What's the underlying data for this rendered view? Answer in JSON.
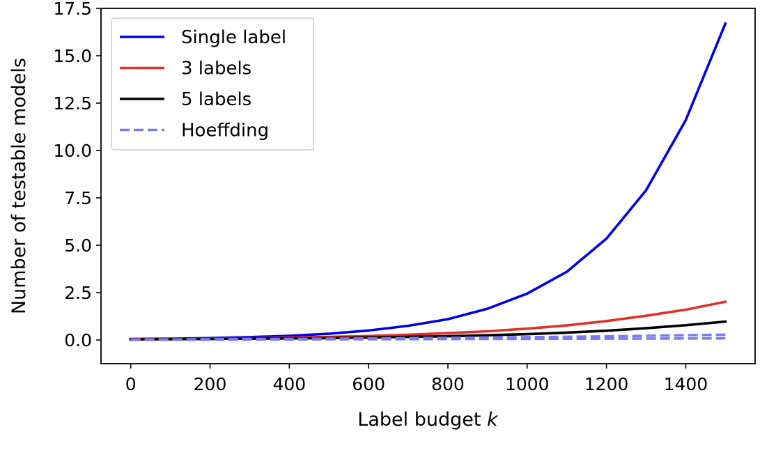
{
  "chart_data": {
    "type": "line",
    "title": "",
    "xlabel": "Label budget",
    "xlabel_var": "k",
    "ylabel": "Number of testable models",
    "xlim": [
      -75,
      1575
    ],
    "ylim": [
      -1.25,
      17.5
    ],
    "xticks": [
      0,
      200,
      400,
      600,
      800,
      1000,
      1200,
      1400
    ],
    "xtick_labels": [
      "0",
      "200",
      "400",
      "600",
      "800",
      "1000",
      "1200",
      "1400"
    ],
    "yticks": [
      0.0,
      2.5,
      5.0,
      7.5,
      10.0,
      12.5,
      15.0,
      17.5
    ],
    "ytick_labels": [
      "0.0",
      "2.5",
      "5.0",
      "7.5",
      "10.0",
      "12.5",
      "15.0",
      "17.5"
    ],
    "grid": false,
    "legend_position": "top-left",
    "legend": [
      "Single label",
      "3 labels",
      "5 labels",
      "Hoeffding"
    ],
    "x": [
      0,
      100,
      200,
      300,
      400,
      500,
      600,
      700,
      800,
      900,
      1000,
      1100,
      1200,
      1300,
      1400,
      1500
    ],
    "series": [
      {
        "name": "Single label",
        "color": "#0000e6",
        "style": "solid",
        "values": [
          0.05,
          0.07,
          0.1,
          0.15,
          0.22,
          0.33,
          0.5,
          0.75,
          1.1,
          1.65,
          2.45,
          3.6,
          5.35,
          7.9,
          11.6,
          16.7
        ]
      },
      {
        "name": "3 labels",
        "color": "#e0302a",
        "style": "solid",
        "values": [
          0.04,
          0.05,
          0.07,
          0.09,
          0.12,
          0.16,
          0.21,
          0.28,
          0.36,
          0.46,
          0.6,
          0.77,
          1.0,
          1.28,
          1.6,
          2.02
        ]
      },
      {
        "name": "5 labels",
        "color": "#000000",
        "style": "solid",
        "values": [
          0.03,
          0.04,
          0.05,
          0.07,
          0.08,
          0.1,
          0.13,
          0.16,
          0.2,
          0.25,
          0.31,
          0.39,
          0.49,
          0.62,
          0.78,
          0.97
        ]
      },
      {
        "name": "Hoeffding",
        "color": "#7b7bf0",
        "style": "dashed",
        "values": [
          0.02,
          0.03,
          0.04,
          0.05,
          0.06,
          0.07,
          0.08,
          0.1,
          0.11,
          0.13,
          0.15,
          0.17,
          0.19,
          0.22,
          0.25,
          0.28
        ]
      },
      {
        "name": "",
        "color": "#7b7bf0",
        "style": "dashed",
        "legend": false,
        "values": [
          0.01,
          0.015,
          0.02,
          0.025,
          0.03,
          0.035,
          0.04,
          0.045,
          0.05,
          0.055,
          0.06,
          0.065,
          0.07,
          0.075,
          0.08,
          0.09
        ]
      }
    ]
  }
}
